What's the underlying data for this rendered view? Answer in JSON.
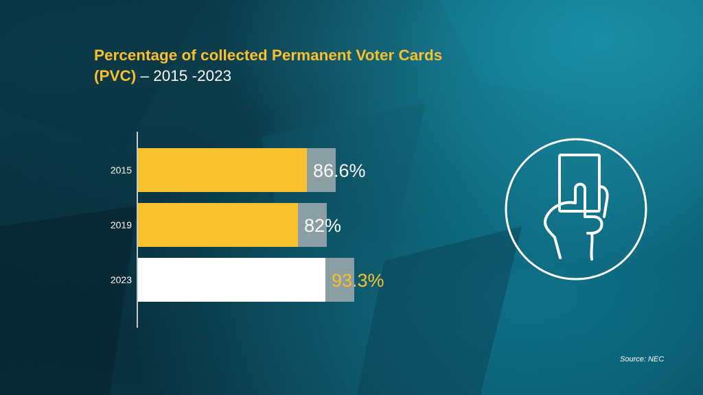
{
  "title": {
    "bold": "Percentage of collected Permanent Voter Cards (PVC)",
    "range": " – 2015 -2023"
  },
  "source": "Source: NEC",
  "colors": {
    "accent": "#fbc02d",
    "white": "#ffffff",
    "track": "#8a9ea3"
  },
  "icon": "hand-holding-card-icon",
  "chart_data": {
    "type": "bar",
    "orientation": "horizontal",
    "categories": [
      "2015",
      "2019",
      "2023"
    ],
    "values": [
      86.6,
      82,
      93.3
    ],
    "labels": [
      "86.6%",
      "82%",
      "93.3%"
    ],
    "bar_colors": [
      "#fbc02d",
      "#fbc02d",
      "#ffffff"
    ],
    "label_colors": [
      "#ffffff",
      "#ffffff",
      "#fbc02d"
    ],
    "xlim": [
      0,
      100
    ],
    "grid": false
  }
}
